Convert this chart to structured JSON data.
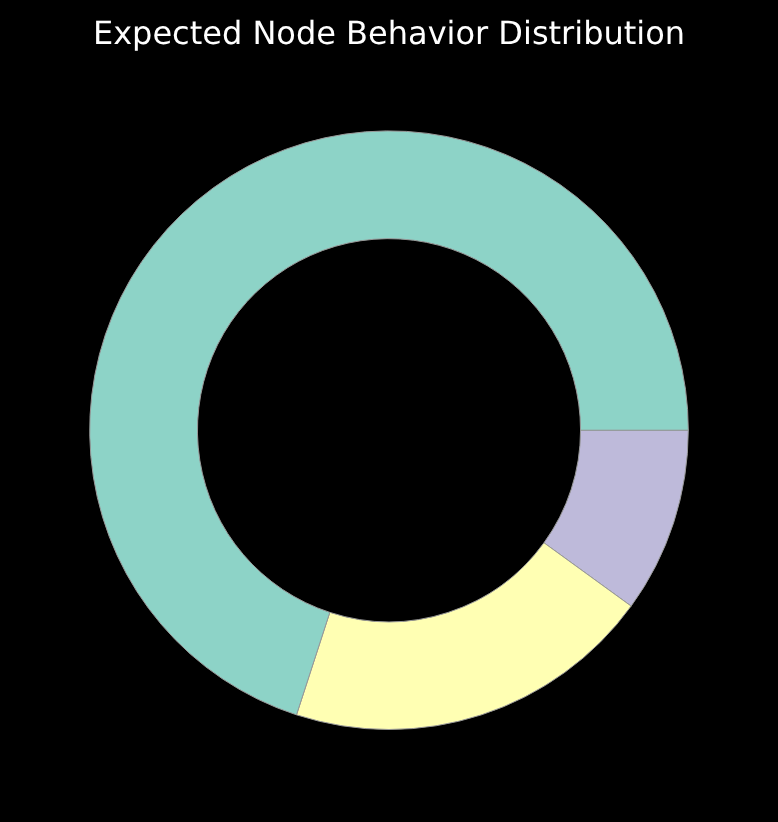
{
  "chart_data": {
    "type": "donut",
    "title": "Expected Node Behavior Distribution",
    "categories": [
      null,
      null,
      null
    ],
    "values": [
      10,
      20,
      70
    ],
    "colors": [
      "#bebada",
      "#ffffb3",
      "#8dd3c7"
    ],
    "legend": false
  }
}
